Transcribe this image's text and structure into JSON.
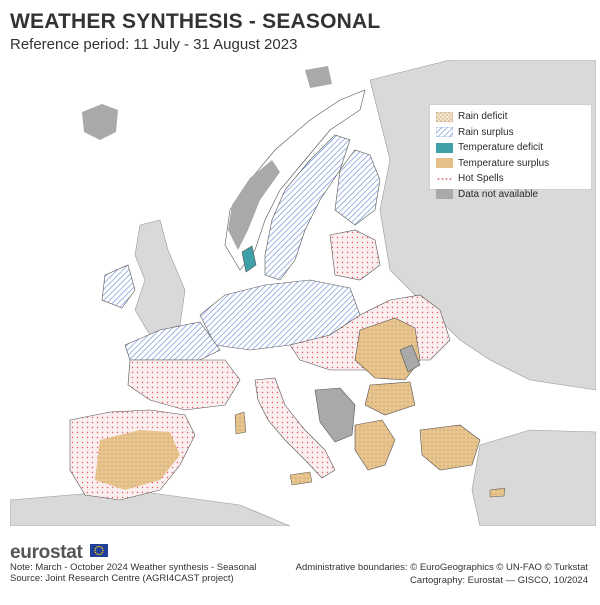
{
  "title": "WEATHER SYNTHESIS - SEASONAL",
  "subtitle": "Reference period: 11 July - 31 August 2023",
  "legend": {
    "items": [
      {
        "label": "Rain deficit",
        "pattern": "rain-deficit",
        "color": "#c9a56a"
      },
      {
        "label": "Rain surplus",
        "pattern": "rain-surplus",
        "color": "#6b8fd6"
      },
      {
        "label": "Temperature deficit",
        "pattern": "temp-deficit",
        "color": "#3fa0a8"
      },
      {
        "label": "Temperature surplus",
        "pattern": "temp-surplus",
        "color": "#e6c089"
      },
      {
        "label": "Hot Spells",
        "pattern": "hot-spells",
        "color": "#e0606a"
      },
      {
        "label": "Data not available",
        "pattern": "no-data",
        "color": "#a9a9a9"
      }
    ]
  },
  "colors": {
    "land_outside": "#d9d9d9",
    "land_inside": "#ffffff",
    "sea": "#ffffff",
    "no_data": "#a9a9a9",
    "border": "#1a1a1a"
  },
  "footer": {
    "logo": "eurostat",
    "note": "Note: March - October 2024 Weather synthesis - Seasonal",
    "source": "Source: Joint Research Centre (AGRI4CAST project)",
    "admin_boundaries": "Administrative boundaries: © EuroGeographics © UN-FAO © Turkstat",
    "cartography": "Cartography: Eurostat — GISCO, 10/2024"
  }
}
